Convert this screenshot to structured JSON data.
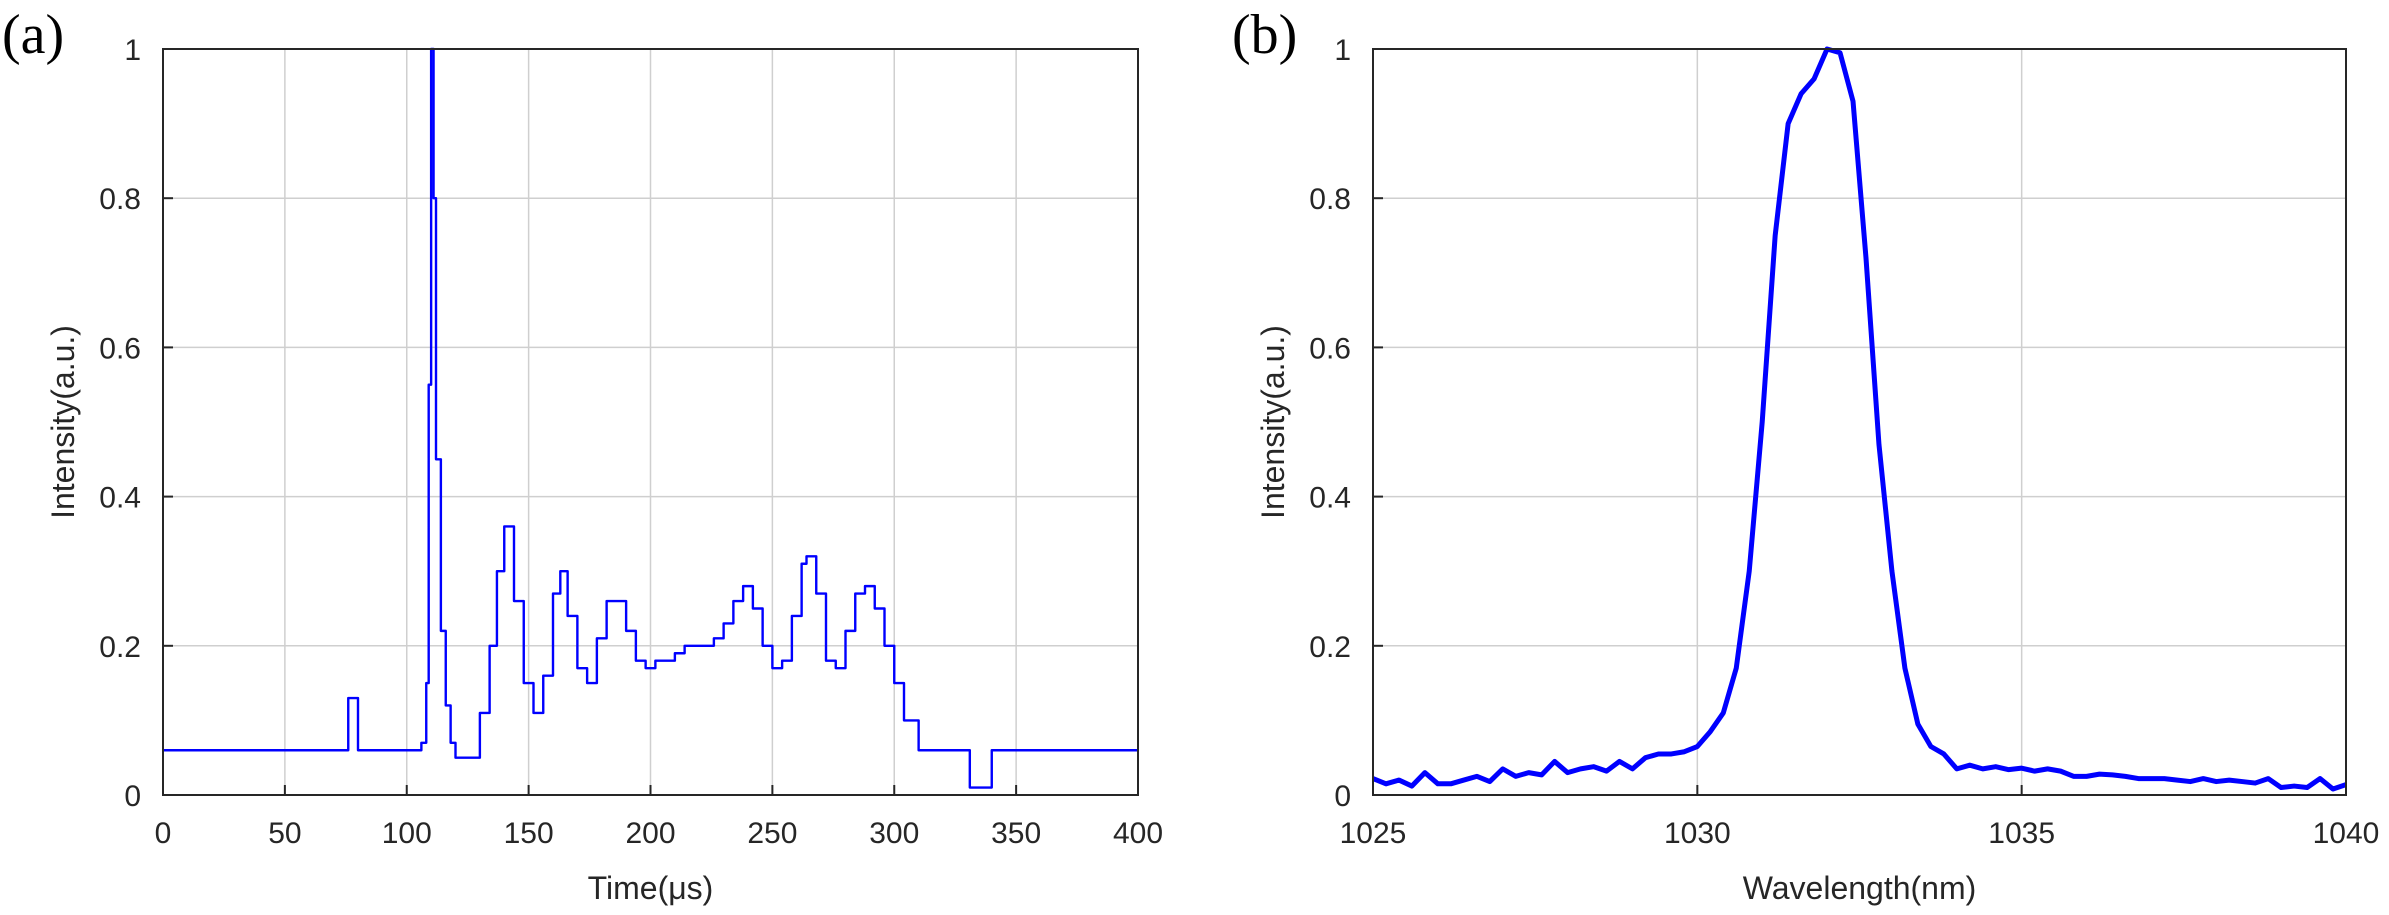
{
  "chart_data": [
    {
      "type": "line",
      "panel_label": "(a)",
      "xlabel": "Time(μs)",
      "ylabel": "Intensity(a.u.)",
      "xlim": [
        0,
        400
      ],
      "ylim": [
        0,
        1
      ],
      "xticks": [
        0,
        50,
        100,
        150,
        200,
        250,
        300,
        350,
        400
      ],
      "yticks": [
        0,
        0.2,
        0.4,
        0.6,
        0.8,
        1
      ],
      "ytick_labels": [
        "0",
        "0.2",
        "0.4",
        "0.6",
        "0.8",
        "1"
      ],
      "grid": true,
      "line_color": "#0000ff",
      "x": [
        0,
        10,
        20,
        30,
        40,
        50,
        60,
        70,
        75,
        76,
        80,
        90,
        100,
        104,
        106,
        108,
        109,
        110,
        111,
        112,
        114,
        116,
        118,
        120,
        125,
        130,
        134,
        137,
        140,
        144,
        148,
        152,
        156,
        160,
        163,
        166,
        170,
        174,
        178,
        182,
        186,
        190,
        194,
        198,
        202,
        206,
        210,
        214,
        218,
        222,
        226,
        230,
        234,
        238,
        242,
        246,
        250,
        254,
        258,
        262,
        264,
        268,
        272,
        276,
        280,
        284,
        288,
        292,
        296,
        300,
        304,
        310,
        320,
        330,
        331,
        340,
        350,
        360,
        370,
        380,
        390,
        395,
        400
      ],
      "values": [
        0.06,
        0.06,
        0.06,
        0.06,
        0.06,
        0.06,
        0.06,
        0.06,
        0.06,
        0.13,
        0.06,
        0.06,
        0.06,
        0.06,
        0.07,
        0.15,
        0.55,
        1.0,
        0.8,
        0.45,
        0.22,
        0.12,
        0.07,
        0.05,
        0.05,
        0.11,
        0.2,
        0.3,
        0.36,
        0.26,
        0.15,
        0.11,
        0.16,
        0.27,
        0.3,
        0.24,
        0.17,
        0.15,
        0.21,
        0.26,
        0.26,
        0.22,
        0.18,
        0.17,
        0.18,
        0.18,
        0.19,
        0.2,
        0.2,
        0.2,
        0.21,
        0.23,
        0.26,
        0.28,
        0.25,
        0.2,
        0.17,
        0.18,
        0.24,
        0.31,
        0.32,
        0.27,
        0.18,
        0.17,
        0.22,
        0.27,
        0.28,
        0.25,
        0.2,
        0.15,
        0.1,
        0.06,
        0.06,
        0.06,
        0.01,
        0.06,
        0.06,
        0.06,
        0.06,
        0.06,
        0.06,
        0.06,
        0.06
      ]
    },
    {
      "type": "line",
      "panel_label": "(b)",
      "xlabel": "Wavelength(nm)",
      "ylabel": "Intensity(a.u.)",
      "xlim": [
        1025,
        1040
      ],
      "ylim": [
        0,
        1
      ],
      "xticks": [
        1025,
        1030,
        1035,
        1040
      ],
      "yticks": [
        0,
        0.2,
        0.4,
        0.6,
        0.8,
        1
      ],
      "ytick_labels": [
        "0",
        "0.2",
        "0.4",
        "0.6",
        "0.8",
        "1"
      ],
      "grid": true,
      "line_color": "#0000ff",
      "x": [
        1025,
        1025.2,
        1025.4,
        1025.6,
        1025.8,
        1026,
        1026.2,
        1026.4,
        1026.6,
        1026.8,
        1027,
        1027.2,
        1027.4,
        1027.6,
        1027.8,
        1028,
        1028.2,
        1028.4,
        1028.6,
        1028.8,
        1029,
        1029.2,
        1029.4,
        1029.6,
        1029.8,
        1030,
        1030.2,
        1030.4,
        1030.6,
        1030.8,
        1031,
        1031.2,
        1031.4,
        1031.6,
        1031.8,
        1032,
        1032.2,
        1032.4,
        1032.6,
        1032.8,
        1033,
        1033.2,
        1033.4,
        1033.6,
        1033.8,
        1034,
        1034.2,
        1034.4,
        1034.6,
        1034.8,
        1035,
        1035.2,
        1035.4,
        1035.6,
        1035.8,
        1036,
        1036.2,
        1036.4,
        1036.6,
        1036.8,
        1037,
        1037.2,
        1037.4,
        1037.6,
        1037.8,
        1038,
        1038.2,
        1038.4,
        1038.6,
        1038.8,
        1039,
        1039.2,
        1039.4,
        1039.6,
        1039.8,
        1040
      ],
      "values": [
        0.022,
        0.015,
        0.02,
        0.012,
        0.03,
        0.015,
        0.015,
        0.02,
        0.025,
        0.018,
        0.035,
        0.025,
        0.03,
        0.027,
        0.045,
        0.03,
        0.035,
        0.038,
        0.032,
        0.045,
        0.035,
        0.05,
        0.055,
        0.055,
        0.058,
        0.065,
        0.085,
        0.11,
        0.17,
        0.3,
        0.5,
        0.75,
        0.9,
        0.94,
        0.96,
        1.0,
        0.995,
        0.93,
        0.72,
        0.47,
        0.3,
        0.17,
        0.095,
        0.065,
        0.055,
        0.035,
        0.04,
        0.035,
        0.038,
        0.034,
        0.036,
        0.032,
        0.035,
        0.032,
        0.025,
        0.025,
        0.028,
        0.027,
        0.025,
        0.022,
        0.022,
        0.022,
        0.02,
        0.018,
        0.022,
        0.018,
        0.02,
        0.018,
        0.016,
        0.022,
        0.01,
        0.012,
        0.01,
        0.022,
        0.008,
        0.014
      ]
    }
  ]
}
